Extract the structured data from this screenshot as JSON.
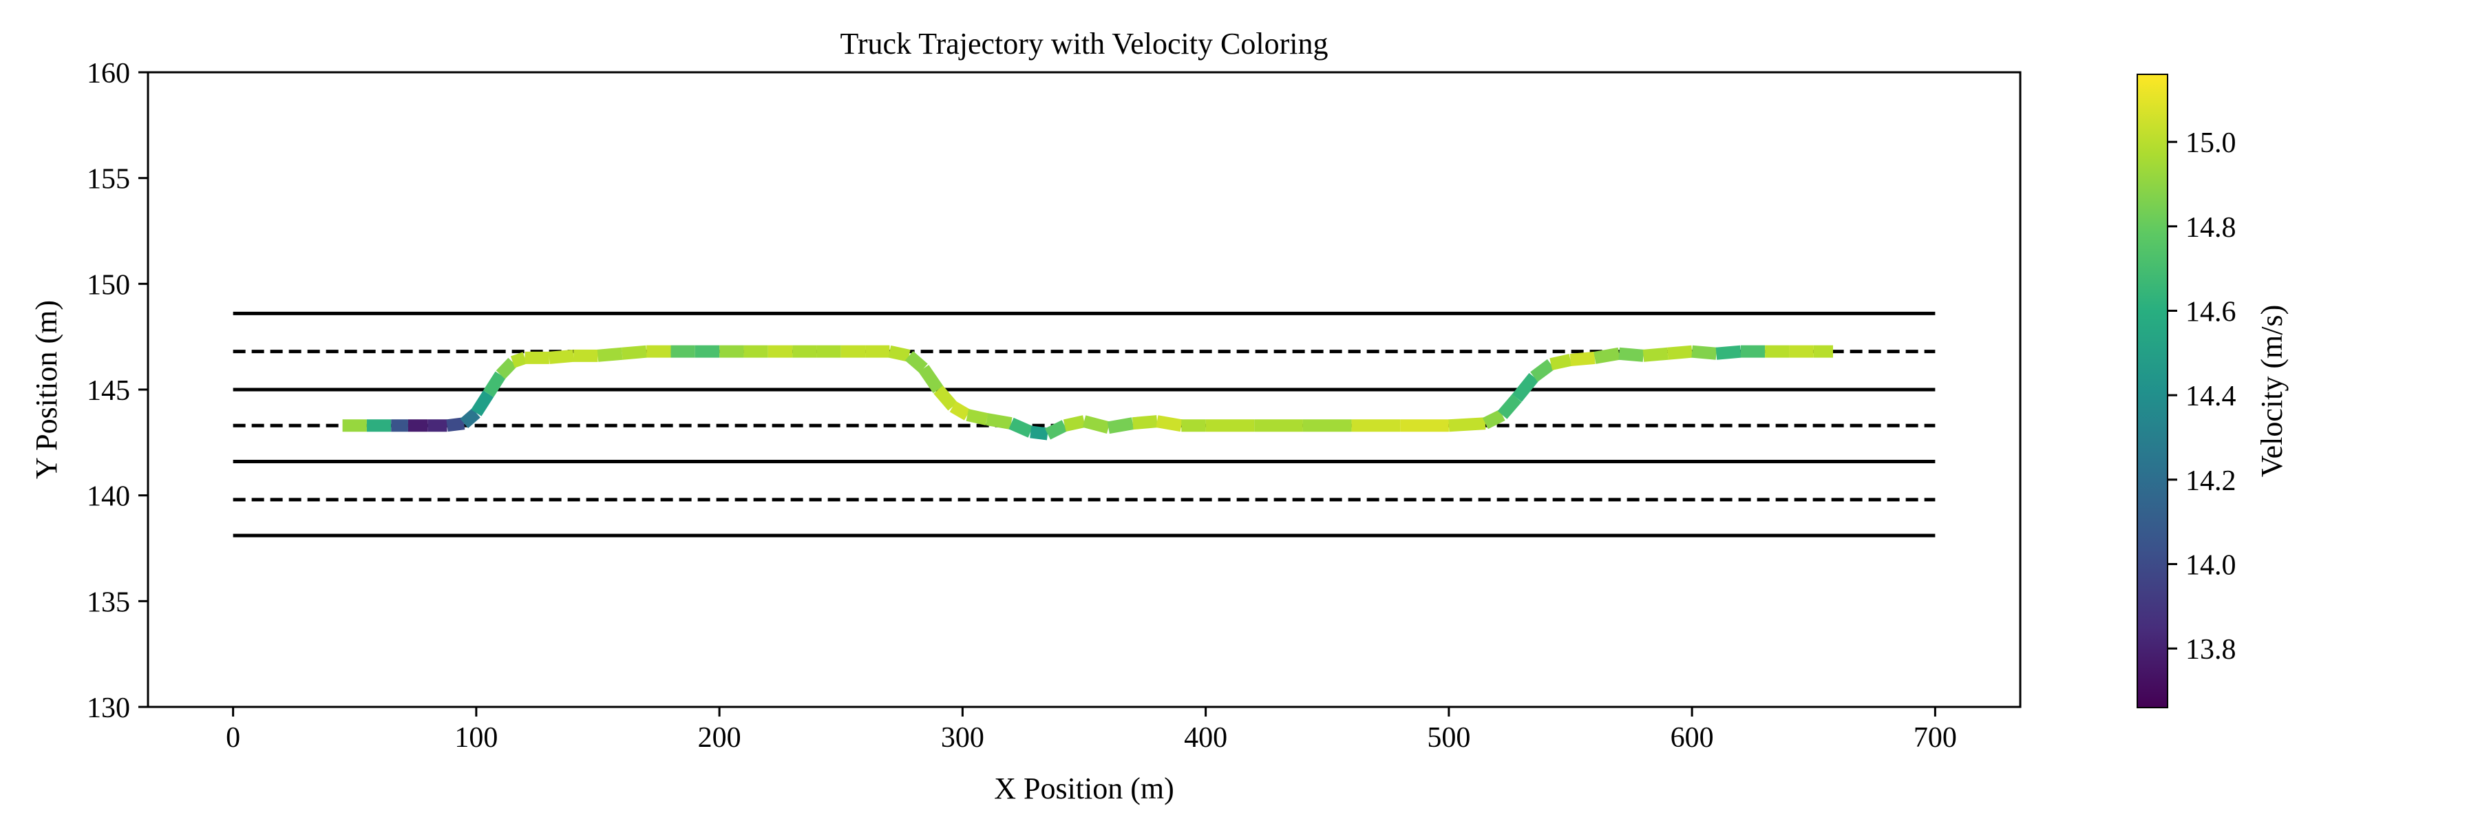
{
  "chart_data": {
    "type": "line",
    "title": "Truck Trajectory with Velocity Coloring",
    "xlabel": "X Position (m)",
    "ylabel": "Y Position (m)",
    "xlim": [
      -35,
      735
    ],
    "ylim": [
      130,
      160
    ],
    "xticks": [
      0,
      100,
      200,
      300,
      400,
      500,
      600,
      700
    ],
    "yticks": [
      130,
      135,
      140,
      145,
      150,
      155,
      160
    ],
    "grid": false,
    "lane_lines": [
      {
        "y": 148.6,
        "style": "solid",
        "x": [
          0,
          700
        ]
      },
      {
        "y": 146.8,
        "style": "dashed",
        "x": [
          0,
          700
        ]
      },
      {
        "y": 145.0,
        "style": "solid",
        "x": [
          0,
          700
        ]
      },
      {
        "y": 143.3,
        "style": "dashed",
        "x": [
          0,
          700
        ]
      },
      {
        "y": 141.6,
        "style": "solid",
        "x": [
          0,
          700
        ]
      },
      {
        "y": 139.8,
        "style": "dashed",
        "x": [
          0,
          700
        ]
      },
      {
        "y": 138.1,
        "style": "solid",
        "x": [
          0,
          700
        ]
      }
    ],
    "trajectory": {
      "x": [
        45,
        55,
        65,
        72,
        80,
        88,
        95,
        100,
        105,
        110,
        115,
        120,
        130,
        140,
        150,
        160,
        170,
        180,
        190,
        200,
        210,
        220,
        230,
        240,
        250,
        260,
        270,
        278,
        284,
        290,
        296,
        302,
        310,
        320,
        328,
        335,
        342,
        350,
        360,
        370,
        380,
        390,
        400,
        420,
        440,
        460,
        480,
        500,
        515,
        522,
        528,
        535,
        542,
        550,
        560,
        570,
        580,
        590,
        600,
        610,
        620,
        630,
        640,
        650,
        658
      ],
      "y": [
        143.3,
        143.3,
        143.3,
        143.3,
        143.3,
        143.3,
        143.4,
        143.9,
        144.8,
        145.7,
        146.3,
        146.5,
        146.5,
        146.6,
        146.6,
        146.7,
        146.8,
        146.8,
        146.8,
        146.8,
        146.8,
        146.8,
        146.8,
        146.8,
        146.8,
        146.8,
        146.8,
        146.6,
        146.0,
        145.0,
        144.2,
        143.8,
        143.6,
        143.4,
        143.0,
        142.9,
        143.3,
        143.5,
        143.2,
        143.4,
        143.5,
        143.3,
        143.3,
        143.3,
        143.3,
        143.3,
        143.3,
        143.3,
        143.4,
        143.8,
        144.6,
        145.6,
        146.2,
        146.4,
        146.5,
        146.7,
        146.6,
        146.7,
        146.8,
        146.7,
        146.8,
        146.8,
        146.8,
        146.8,
        146.8
      ],
      "velocity": [
        14.95,
        14.9,
        14.3,
        13.8,
        13.75,
        13.9,
        14.1,
        14.4,
        14.6,
        14.8,
        14.95,
        15.05,
        15.0,
        15.05,
        15.0,
        14.9,
        15.05,
        15.0,
        14.55,
        14.9,
        14.95,
        15.0,
        15.05,
        14.9,
        15.05,
        15.0,
        15.05,
        14.95,
        14.85,
        14.95,
        15.1,
        15.0,
        14.9,
        14.95,
        14.4,
        14.6,
        14.9,
        15.05,
        14.8,
        14.9,
        15.1,
        15.0,
        14.95,
        15.05,
        14.9,
        15.0,
        15.1,
        15.05,
        15.0,
        14.8,
        14.6,
        14.7,
        14.9,
        15.1,
        15.0,
        14.8,
        14.9,
        15.05,
        14.95,
        14.8,
        14.5,
        14.95,
        15.05,
        15.0,
        15.0
      ]
    },
    "colorbar": {
      "label": "Velocity (m/s)",
      "colormap": "viridis",
      "range": [
        13.66,
        15.16
      ],
      "ticks": [
        "13.8",
        "14.0",
        "14.2",
        "14.4",
        "14.6",
        "14.8",
        "15.0"
      ]
    }
  }
}
